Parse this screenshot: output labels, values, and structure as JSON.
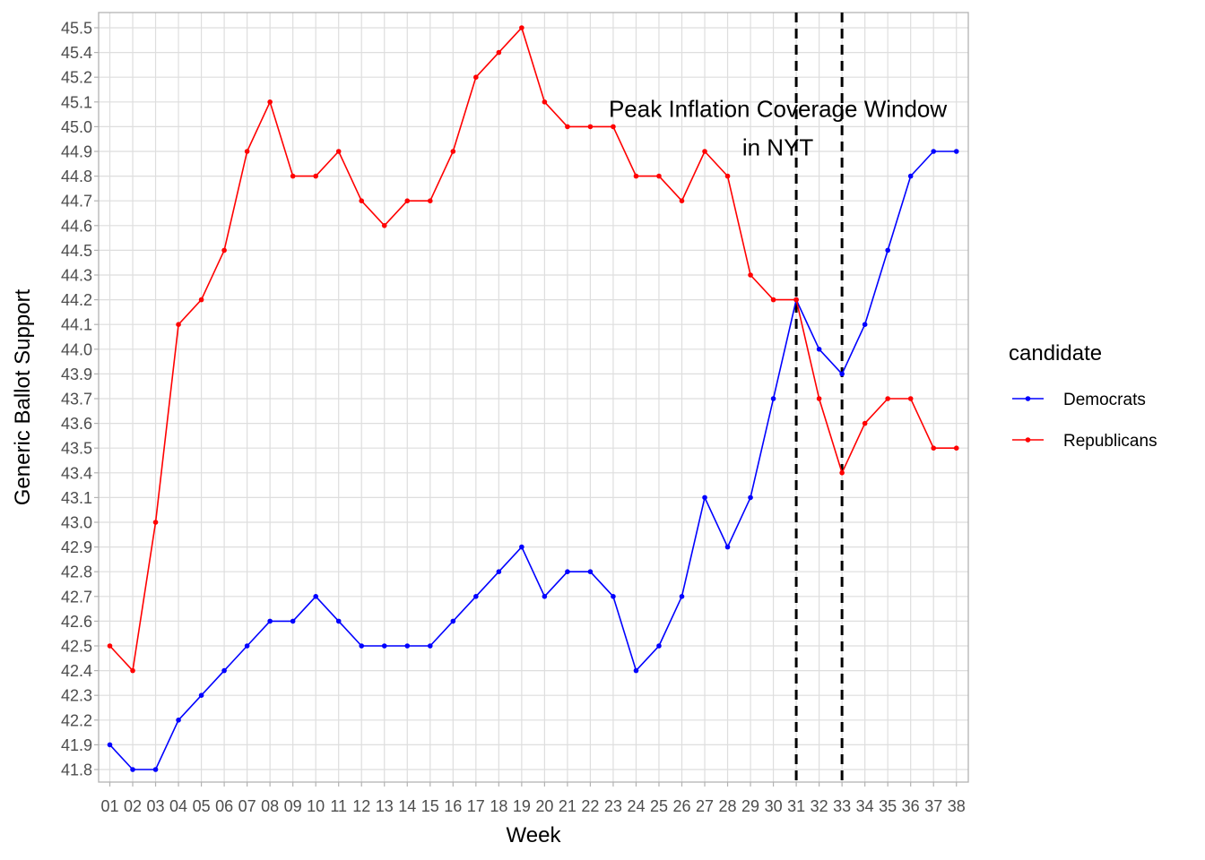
{
  "chart_data": {
    "type": "line",
    "xlabel": "Week",
    "ylabel": "Generic Ballot Support",
    "x": [
      "01",
      "02",
      "03",
      "04",
      "05",
      "06",
      "07",
      "08",
      "09",
      "10",
      "11",
      "12",
      "13",
      "14",
      "15",
      "16",
      "17",
      "18",
      "19",
      "20",
      "21",
      "22",
      "23",
      "24",
      "25",
      "26",
      "27",
      "28",
      "29",
      "30",
      "31",
      "32",
      "33",
      "34",
      "35",
      "36",
      "37",
      "38"
    ],
    "y_ticks": [
      "41.8",
      "41.9",
      "42.2",
      "42.3",
      "42.4",
      "42.5",
      "42.6",
      "42.7",
      "42.8",
      "42.9",
      "43.0",
      "43.1",
      "43.4",
      "43.5",
      "43.6",
      "43.7",
      "43.9",
      "44.0",
      "44.1",
      "44.2",
      "44.3",
      "44.5",
      "44.6",
      "44.7",
      "44.8",
      "44.9",
      "45.0",
      "45.1",
      "45.2",
      "45.4",
      "45.5"
    ],
    "series": [
      {
        "name": "Democrats",
        "color": "#0000ff",
        "values": [
          "41.9",
          "41.8",
          "41.8",
          "42.2",
          "42.3",
          "42.4",
          "42.5",
          "42.6",
          "42.6",
          "42.7",
          "42.6",
          "42.5",
          "42.5",
          "42.5",
          "42.5",
          "42.6",
          "42.7",
          "42.8",
          "42.9",
          "42.7",
          "42.8",
          "42.8",
          "42.7",
          "42.4",
          "42.5",
          "42.7",
          "43.1",
          "42.9",
          "43.1",
          "43.7",
          "44.2",
          "44.0",
          "43.9",
          "44.1",
          "44.5",
          "44.8",
          "44.9",
          "44.9"
        ]
      },
      {
        "name": "Republicans",
        "color": "#ff0000",
        "values": [
          "42.5",
          "42.4",
          "43.0",
          "44.1",
          "44.2",
          "44.5",
          "44.9",
          "45.1",
          "44.8",
          "44.8",
          "44.9",
          "44.7",
          "44.6",
          "44.7",
          "44.7",
          "44.9",
          "45.2",
          "45.4",
          "45.5",
          "45.1",
          "45.0",
          "45.0",
          "45.0",
          "44.8",
          "44.8",
          "44.7",
          "44.9",
          "44.8",
          "44.3",
          "44.2",
          "44.2",
          "43.7",
          "43.4",
          "43.6",
          "43.7",
          "43.7",
          "43.5",
          "43.5"
        ]
      }
    ],
    "vlines": [
      "31",
      "33"
    ],
    "annotation": {
      "lines": [
        "Peak Inflation Coverage Window",
        "in NYT"
      ],
      "x_center": "30",
      "y_top": "45.0"
    },
    "legend": {
      "title": "candidate",
      "position": "right"
    },
    "grid": true
  }
}
